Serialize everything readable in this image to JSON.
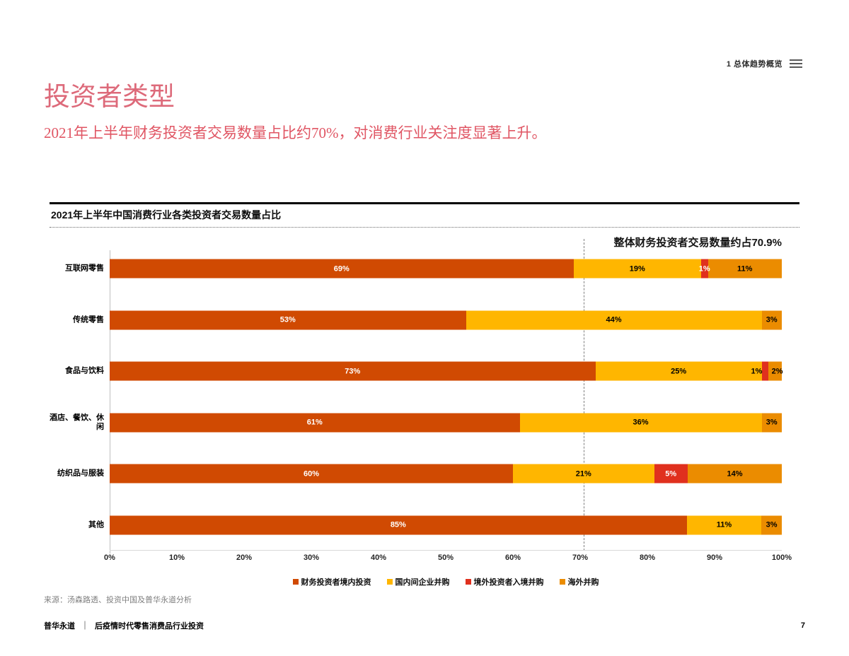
{
  "header": {
    "section_label": "1 总体趋势概览"
  },
  "title": "投资者类型",
  "subtitle": "2021年上半年财务投资者交易数量占比约70%，对消费行业关注度显著上升。",
  "colors": {
    "title_pink": "#DD6A7A",
    "subtitle_red": "#E05664",
    "series_financial": "#D04A02",
    "series_domestic_ma": "#FFB600",
    "series_inbound_ma": "#E0301E",
    "series_overseas_ma": "#EB8C00"
  },
  "chart_data": {
    "type": "bar",
    "orientation": "horizontal",
    "stacked": true,
    "title": "2021年上半年中国消费行业各类投资者交易数量占比",
    "annotation": "整体财务投资者交易数量约占70.9%",
    "reference_line_pct": 70.5,
    "xlim": [
      0,
      100
    ],
    "x_ticks": [
      "0%",
      "10%",
      "20%",
      "30%",
      "40%",
      "50%",
      "60%",
      "70%",
      "80%",
      "90%",
      "100%"
    ],
    "categories": [
      "互联网零售",
      "传统零售",
      "食品与饮料",
      "酒店、餐饮、休闲",
      "纺织品与服装",
      "其他"
    ],
    "series": [
      {
        "name": "财务投资者境内投资",
        "color": "#D04A02",
        "label_color": "#ffffff"
      },
      {
        "name": "国内间企业并购",
        "color": "#FFB600",
        "label_color": "#000000"
      },
      {
        "name": "境外投资者入境并购",
        "color": "#E0301E",
        "label_color": "#ffffff"
      },
      {
        "name": "海外并购",
        "color": "#EB8C00",
        "label_color": "#000000"
      }
    ],
    "rows": [
      {
        "category": "互联网零售",
        "segments": [
          {
            "series": "财务投资者境内投资",
            "value": 69,
            "label": "69%"
          },
          {
            "series": "国内间企业并购",
            "value": 19,
            "label": "19%"
          },
          {
            "series": "境外投资者入境并购",
            "value": 1,
            "label": "1%"
          },
          {
            "series": "海外并购",
            "value": 11,
            "label": "11%"
          }
        ]
      },
      {
        "category": "传统零售",
        "segments": [
          {
            "series": "财务投资者境内投资",
            "value": 53,
            "label": "53%"
          },
          {
            "series": "国内间企业并购",
            "value": 44,
            "label": "44%"
          },
          {
            "series": "海外并购",
            "value": 3,
            "label": "3%"
          }
        ]
      },
      {
        "category": "食品与饮料",
        "segments": [
          {
            "series": "财务投资者境内投资",
            "value": 73,
            "label": "73%"
          },
          {
            "series": "国内间企业并购",
            "value": 25,
            "label": "25%"
          },
          {
            "series": "境外投资者入境并购",
            "value": 1,
            "label": "1%",
            "label_color": "#000000",
            "label_dx": -12
          },
          {
            "series": "海外并购",
            "value": 2,
            "label": "2%",
            "label_dx": 3
          }
        ]
      },
      {
        "category": "酒店、餐饮、休闲",
        "segments": [
          {
            "series": "财务投资者境内投资",
            "value": 61,
            "label": "61%"
          },
          {
            "series": "国内间企业并购",
            "value": 36,
            "label": "36%"
          },
          {
            "series": "海外并购",
            "value": 3,
            "label": "3%"
          }
        ]
      },
      {
        "category": "纺织品与服装",
        "segments": [
          {
            "series": "财务投资者境内投资",
            "value": 60,
            "label": "60%"
          },
          {
            "series": "国内间企业并购",
            "value": 21,
            "label": "21%"
          },
          {
            "series": "境外投资者入境并购",
            "value": 5,
            "label": "5%"
          },
          {
            "series": "海外并购",
            "value": 14,
            "label": "14%"
          }
        ]
      },
      {
        "category": "其他",
        "segments": [
          {
            "series": "财务投资者境内投资",
            "value": 85,
            "label": "85%"
          },
          {
            "series": "国内间企业并购",
            "value": 11,
            "label": "11%"
          },
          {
            "series": "海外并购",
            "value": 3,
            "label": "3%"
          }
        ]
      }
    ]
  },
  "source": "来源：汤森路透、投资中国及普华永道分析",
  "footer": {
    "brand": "普华永道",
    "separator": "｜",
    "doc_title": "后疫情时代零售消费品行业投资",
    "page_number": "7"
  }
}
